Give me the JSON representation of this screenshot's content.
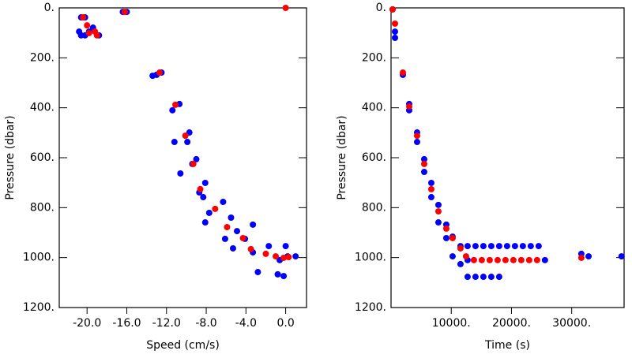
{
  "chart_data": [
    {
      "type": "scatter",
      "xlabel": "Speed (cm/s)",
      "ylabel": "Pressure (dbar)",
      "xlim": [
        -22.8,
        2.1
      ],
      "ylim": [
        1200,
        0
      ],
      "y_inverted": true,
      "xticks": [
        {
          "value": -20,
          "label": "-20.0"
        },
        {
          "value": -16,
          "label": "-16.0"
        },
        {
          "value": -12,
          "label": "-12.0"
        },
        {
          "value": -8,
          "label": "-8.0"
        },
        {
          "value": -4,
          "label": "-4.0"
        },
        {
          "value": 0,
          "label": "0.0"
        }
      ],
      "yticks": [
        {
          "value": 0,
          "label": "0."
        },
        {
          "value": 200,
          "label": "200."
        },
        {
          "value": 400,
          "label": "400."
        },
        {
          "value": 600,
          "label": "600."
        },
        {
          "value": 800,
          "label": "800."
        },
        {
          "value": 1000,
          "label": "1000."
        },
        {
          "value": 1200,
          "label": "1200."
        }
      ],
      "series": [
        {
          "color": "#0000ff",
          "x": [
            -20.6,
            -20.2,
            -20.8,
            -20.6,
            -20.2,
            -19.8,
            -19.4,
            -18.8,
            -16.4,
            -16.0,
            -13.4,
            -13.0,
            -12.5,
            -11.4,
            -10.7,
            -11.2,
            -9.7,
            -9.9,
            -9.0,
            -10.6,
            -9.4,
            -8.7,
            -8.3,
            -8.1,
            -7.7,
            -8.1,
            -6.3,
            -5.5,
            -6.1,
            -4.9,
            -5.3,
            -4.1,
            -3.3,
            -3.3,
            -2.8,
            -1.7,
            -0.8,
            -0.2,
            0.0,
            0.2,
            1.0,
            -0.6
          ],
          "values": [
            38,
            38,
            95,
            110,
            110,
            95,
            79,
            110,
            16,
            16,
            272,
            268,
            259,
            410,
            385,
            537,
            499,
            537,
            606,
            663,
            625,
            739,
            758,
            701,
            821,
            859,
            777,
            840,
            925,
            894,
            963,
            925,
            868,
            979,
            1058,
            954,
            1067,
            1074,
            954,
            995,
            995,
            1010
          ]
        },
        {
          "color": "#ff0000",
          "x": [
            -20.4,
            -20.0,
            -19.8,
            -19.2,
            -19.0,
            -16.2,
            0.0,
            -12.7,
            -11.1,
            -10.1,
            -9.3,
            -8.6,
            -7.1,
            -5.9,
            -4.3,
            -3.5,
            -2.0,
            -1.0,
            -0.2,
            0.3
          ],
          "values": [
            38,
            70,
            101,
            95,
            110,
            16,
            0,
            259,
            388,
            512,
            625,
            726,
            805,
            878,
            922,
            966,
            985,
            995,
            1001,
            998
          ]
        }
      ]
    },
    {
      "type": "scatter",
      "xlabel": "Time (s)",
      "ylabel": "Pressure (dbar)",
      "xlim": [
        0,
        38700
      ],
      "ylim": [
        1200,
        0
      ],
      "y_inverted": true,
      "xticks": [
        {
          "value": 10000,
          "label": "10000."
        },
        {
          "value": 20000,
          "label": "20000."
        },
        {
          "value": 30000,
          "label": "30000."
        }
      ],
      "yticks": [
        {
          "value": 0,
          "label": "0."
        },
        {
          "value": 200,
          "label": "200."
        },
        {
          "value": 400,
          "label": "400."
        },
        {
          "value": 600,
          "label": "600."
        },
        {
          "value": 800,
          "label": "800."
        },
        {
          "value": 1000,
          "label": "1000."
        },
        {
          "value": 1200,
          "label": "1200."
        }
      ],
      "series": [
        {
          "color": "#0000ff",
          "x": [
            260,
            655,
            655,
            1966,
            3014,
            3014,
            4325,
            4325,
            5505,
            5505,
            6684,
            6684,
            7864,
            7864,
            9174,
            9174,
            10223,
            10223,
            11533,
            11533,
            12713,
            14023,
            15334,
            16645,
            17955,
            19266,
            20577,
            21887,
            23198,
            24509,
            12713,
            14023,
            15334,
            16645,
            17955,
            12713,
            25557,
            31600,
            32800,
            38270
          ],
          "values": [
            6,
            95,
            120,
            268,
            385,
            410,
            499,
            537,
            606,
            657,
            701,
            758,
            789,
            859,
            868,
            922,
            916,
            995,
            954,
            1026,
            954,
            954,
            954,
            954,
            954,
            954,
            954,
            954,
            954,
            954,
            1077,
            1077,
            1077,
            1077,
            1077,
            1010,
            1010,
            985,
            995,
            995
          ]
        },
        {
          "color": "#ff0000",
          "x": [
            260,
            655,
            1966,
            3014,
            4325,
            5505,
            6684,
            7864,
            9174,
            10223,
            11533,
            12450,
            13761,
            15072,
            16383,
            17694,
            19004,
            20315,
            21625,
            22936,
            24246,
            31600
          ],
          "values": [
            6,
            63,
            259,
            395,
            512,
            625,
            726,
            815,
            884,
            922,
            963,
            995,
            1010,
            1010,
            1010,
            1010,
            1010,
            1010,
            1010,
            1010,
            1010,
            1001
          ]
        }
      ]
    }
  ]
}
